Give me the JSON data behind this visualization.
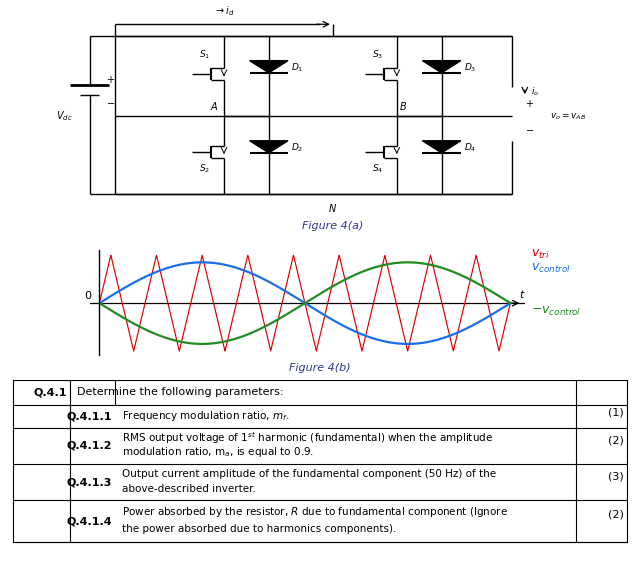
{
  "bg_color": "#ffffff",
  "fig_width": 6.4,
  "fig_height": 5.71,
  "circuit_caption": "Figure 4(a)",
  "waveform_caption": "Figure 4(b)",
  "tri_color": "#dd0000",
  "control_color": "#1a6ee8",
  "neg_control_color": "#228b22",
  "tri_freq_ratio": 9,
  "tri_amplitude": 1.0,
  "control_amplitude": 0.85,
  "table_header_q": "Q.4.1",
  "table_header_text": "Determine the following parameters:",
  "rows": [
    {
      "q": "Q.4.1.1",
      "line1": "Frequency modulation ratio, $m_f$.",
      "line2": "",
      "marks": "(1)"
    },
    {
      "q": "Q.4.1.2",
      "line1": "RMS output voltage of 1$^{st}$ harmonic (fundamental) when the amplitude",
      "line2": "modulation ratio, m$_a$, is equal to 0.9.",
      "marks": "(2)"
    },
    {
      "q": "Q.4.1.3",
      "line1": "Output current amplitude of the fundamental component (50 Hz) of the",
      "line2": "above-described inverter.",
      "marks": "(3)"
    },
    {
      "q": "Q.4.1.4",
      "line1": "Power absorbed by the resistor, $R$ due to fundamental component (Ignore",
      "line2": "the power absorbed due to harmonics components).",
      "marks": "(2)"
    }
  ]
}
